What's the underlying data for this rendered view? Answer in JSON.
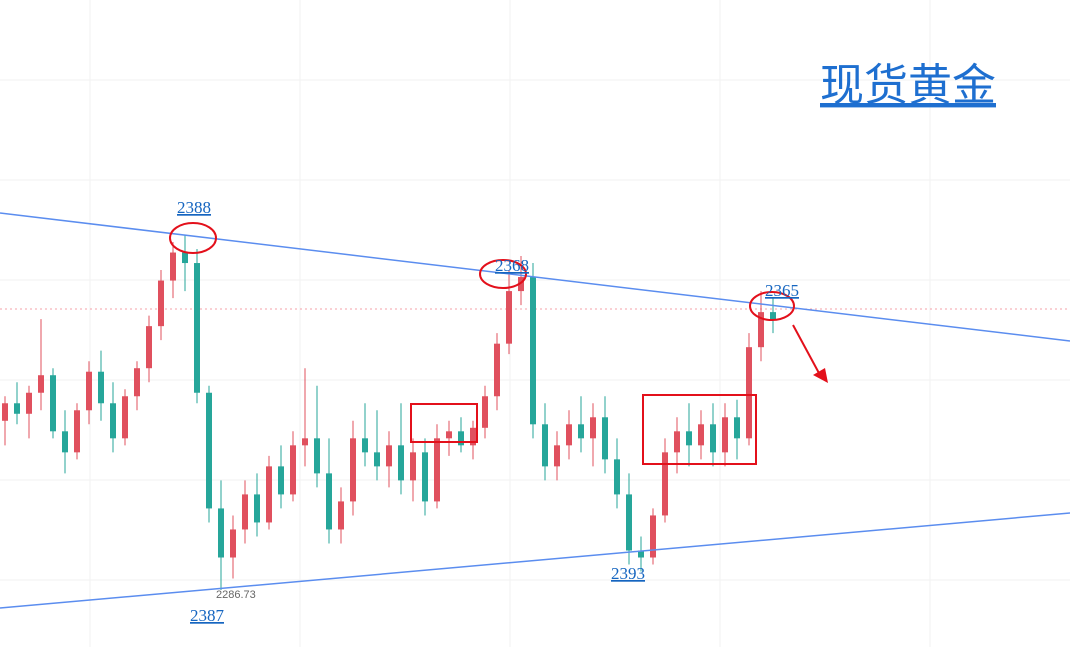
{
  "chart_data": {
    "type": "candlestick",
    "title": "现货黄金",
    "annotations": [
      "2388",
      "2368",
      "2365",
      "2393",
      "2387"
    ],
    "low_label": 2286.73,
    "up_color": "#e0505e",
    "down_color": "#26a69a",
    "open": [
      2335,
      2340,
      2337,
      2343,
      2348,
      2332,
      2326,
      2338,
      2349,
      2340,
      2330,
      2342,
      2350,
      2362,
      2375,
      2383,
      2380,
      2343,
      2310,
      2296,
      2304,
      2314,
      2306,
      2322,
      2314,
      2328,
      2330,
      2320,
      2304,
      2312,
      2330,
      2326,
      2322,
      2328,
      2318,
      2326,
      2312,
      2330,
      2332,
      2328,
      2333,
      2342,
      2357,
      2372,
      2376,
      2334,
      2322,
      2328,
      2334,
      2330,
      2336,
      2324,
      2314,
      2298,
      2296,
      2308,
      2326,
      2332,
      2328,
      2334,
      2326,
      2336,
      2330,
      2356,
      2366
    ],
    "high": [
      2342,
      2346,
      2345,
      2364,
      2350,
      2338,
      2340,
      2352,
      2355,
      2346,
      2344,
      2352,
      2365,
      2378,
      2386,
      2388,
      2384,
      2345,
      2318,
      2308,
      2318,
      2320,
      2325,
      2328,
      2332,
      2350,
      2345,
      2330,
      2316,
      2335,
      2340,
      2338,
      2332,
      2340,
      2330,
      2330,
      2334,
      2335,
      2336,
      2335,
      2345,
      2360,
      2378,
      2382,
      2380,
      2340,
      2332,
      2338,
      2342,
      2340,
      2342,
      2330,
      2320,
      2302,
      2310,
      2330,
      2336,
      2340,
      2338,
      2340,
      2340,
      2341,
      2360,
      2372,
      2370
    ],
    "low": [
      2328,
      2334,
      2330,
      2338,
      2330,
      2320,
      2324,
      2334,
      2335,
      2326,
      2328,
      2338,
      2346,
      2358,
      2370,
      2372,
      2340,
      2306,
      2286.73,
      2290,
      2300,
      2302,
      2304,
      2310,
      2312,
      2322,
      2316,
      2300,
      2300,
      2308,
      2322,
      2318,
      2316,
      2314,
      2312,
      2308,
      2310,
      2325,
      2326,
      2324,
      2330,
      2338,
      2354,
      2368,
      2330,
      2318,
      2318,
      2324,
      2326,
      2322,
      2320,
      2310,
      2294,
      2292,
      2294,
      2306,
      2320,
      2322,
      2324,
      2322,
      2322,
      2324,
      2328,
      2352,
      2360
    ],
    "close": [
      2340,
      2337,
      2343,
      2348,
      2332,
      2326,
      2338,
      2349,
      2340,
      2330,
      2342,
      2350,
      2362,
      2375,
      2383,
      2380,
      2343,
      2310,
      2296,
      2304,
      2314,
      2306,
      2322,
      2314,
      2328,
      2330,
      2320,
      2304,
      2312,
      2330,
      2326,
      2322,
      2328,
      2318,
      2326,
      2312,
      2330,
      2332,
      2328,
      2333,
      2342,
      2357,
      2372,
      2376,
      2334,
      2322,
      2328,
      2334,
      2330,
      2336,
      2324,
      2314,
      2298,
      2296,
      2308,
      2326,
      2332,
      2328,
      2334,
      2326,
      2336,
      2330,
      2356,
      2366,
      2364
    ]
  }
}
